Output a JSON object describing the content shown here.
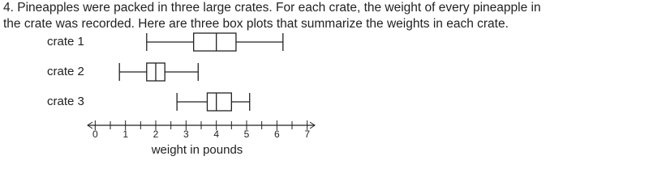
{
  "question": {
    "lines": [
      "4.  Pineapples were packed in three large crates. For each crate, the weight of every pineapple in",
      "the crate was recorded. Here are three box plots that summarize the weights in each crate."
    ]
  },
  "chart_data": {
    "type": "boxplot",
    "orientation": "horizontal",
    "xlabel": "weight in pounds",
    "boxes": [
      {
        "name": "crate 1",
        "min": 1.7,
        "q1": 3.25,
        "median": 4,
        "q3": 4.65,
        "max": 6.2
      },
      {
        "name": "crate 2",
        "min": 0.8,
        "q1": 1.7,
        "median": 2,
        "q3": 2.3,
        "max": 3.4
      },
      {
        "name": "crate 3",
        "min": 2.7,
        "q1": 3.7,
        "median": 4,
        "q3": 4.5,
        "max": 5.1
      }
    ],
    "color": "#222222",
    "xlim": [
      -0.25,
      7.25
    ],
    "xticks": [
      0,
      1,
      2,
      3,
      4,
      5,
      6,
      7
    ],
    "minor_xticks": [
      0.5,
      1.5,
      2.5,
      3.5,
      4.5,
      5.5,
      6.5
    ]
  }
}
